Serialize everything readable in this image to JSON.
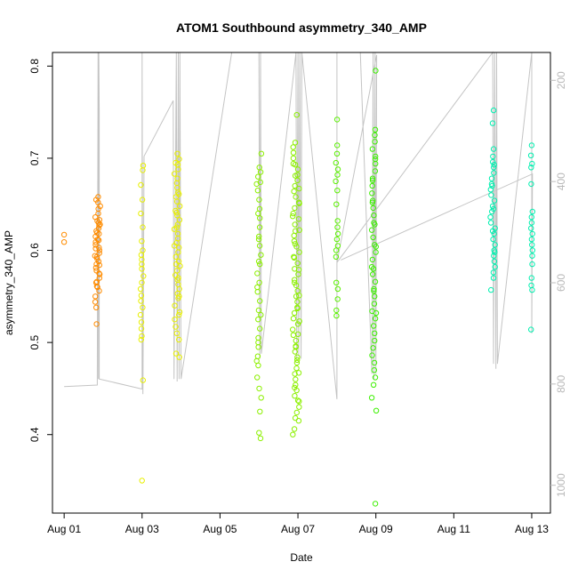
{
  "chart_data": {
    "type": "scatter",
    "title": "ATOM1 Southbound asymmetry_340_AMP",
    "xlabel": "Date",
    "ylabel": "asymmetry_340_AMP",
    "xlim_days": [
      -0.3,
      12.48
    ],
    "ylim": [
      0.3148,
      0.8148
    ],
    "xticks": [
      {
        "day": 0,
        "label": "Aug 01"
      },
      {
        "day": 2,
        "label": "Aug 03"
      },
      {
        "day": 4,
        "label": "Aug 05"
      },
      {
        "day": 6,
        "label": "Aug 07"
      },
      {
        "day": 8,
        "label": "Aug 09"
      },
      {
        "day": 10,
        "label": "Aug 11"
      },
      {
        "day": 12,
        "label": "Aug 13"
      }
    ],
    "yticks": [
      0.4,
      0.5,
      0.6,
      0.7,
      0.8
    ],
    "secondary_axis": {
      "description": "depth (inverted, right side, grey)",
      "ticks": [
        200,
        400,
        600,
        800,
        1000
      ],
      "range": [
        1055,
        145
      ]
    },
    "grid": false,
    "point_clusters": [
      {
        "day": 0.0,
        "spread": 0.0,
        "color": "#FF8C00",
        "values": [
          0.617,
          0.609
        ]
      },
      {
        "day": 0.85,
        "spread": 0.15,
        "color": "#FF8C00",
        "values": [
          0.658,
          0.655,
          0.652,
          0.648,
          0.645,
          0.64,
          0.636,
          0.633,
          0.63,
          0.627,
          0.624,
          0.621,
          0.618,
          0.615,
          0.612,
          0.609,
          0.606,
          0.603,
          0.6,
          0.597,
          0.594,
          0.591,
          0.588,
          0.585,
          0.581,
          0.578,
          0.574,
          0.57,
          0.566,
          0.561,
          0.556,
          0.55,
          0.544,
          0.538,
          0.52,
          0.632,
          0.628,
          0.619,
          0.611,
          0.602,
          0.593,
          0.584,
          0.575,
          0.565,
          0.56
        ]
      },
      {
        "day": 2.0,
        "spread": 0.08,
        "color": "#E8F000",
        "values": [
          0.692,
          0.687,
          0.671,
          0.655,
          0.64,
          0.625,
          0.61,
          0.6,
          0.595,
          0.59,
          0.585,
          0.58,
          0.572,
          0.565,
          0.558,
          0.551,
          0.545,
          0.538,
          0.53,
          0.522,
          0.515,
          0.507,
          0.503,
          0.459,
          0.35
        ]
      },
      {
        "day": 2.9,
        "spread": 0.15,
        "color": "#E8F000",
        "values": [
          0.705,
          0.699,
          0.693,
          0.688,
          0.683,
          0.678,
          0.673,
          0.668,
          0.663,
          0.658,
          0.653,
          0.648,
          0.643,
          0.638,
          0.633,
          0.628,
          0.623,
          0.618,
          0.613,
          0.608,
          0.603,
          0.598,
          0.593,
          0.588,
          0.583,
          0.578,
          0.573,
          0.568,
          0.563,
          0.558,
          0.553,
          0.548,
          0.54,
          0.533,
          0.525,
          0.517,
          0.51,
          0.503,
          0.488,
          0.484,
          0.695,
          0.661,
          0.641,
          0.625,
          0.605,
          0.585,
          0.57,
          0.55,
          0.53
        ]
      },
      {
        "day": 5.0,
        "spread": 0.12,
        "color": "#8CF000",
        "values": [
          0.705,
          0.69,
          0.685,
          0.68,
          0.672,
          0.665,
          0.655,
          0.645,
          0.635,
          0.625,
          0.615,
          0.605,
          0.595,
          0.585,
          0.575,
          0.565,
          0.555,
          0.545,
          0.535,
          0.525,
          0.515,
          0.505,
          0.495,
          0.485,
          0.475,
          0.462,
          0.45,
          0.44,
          0.425,
          0.402,
          0.396,
          0.674,
          0.64,
          0.612,
          0.588,
          0.56,
          0.53,
          0.5,
          0.48
        ]
      },
      {
        "day": 5.95,
        "spread": 0.18,
        "color": "#8CF000",
        "values": [
          0.747,
          0.717,
          0.712,
          0.706,
          0.7,
          0.694,
          0.688,
          0.682,
          0.676,
          0.67,
          0.664,
          0.658,
          0.652,
          0.646,
          0.64,
          0.634,
          0.628,
          0.622,
          0.616,
          0.61,
          0.604,
          0.598,
          0.592,
          0.586,
          0.58,
          0.574,
          0.568,
          0.562,
          0.556,
          0.55,
          0.544,
          0.538,
          0.532,
          0.526,
          0.52,
          0.514,
          0.508,
          0.502,
          0.496,
          0.49,
          0.484,
          0.478,
          0.472,
          0.466,
          0.46,
          0.454,
          0.448,
          0.442,
          0.436,
          0.43,
          0.424,
          0.418,
          0.415,
          0.406,
          0.4,
          0.693,
          0.681,
          0.667,
          0.651,
          0.637,
          0.621,
          0.607,
          0.593,
          0.579,
          0.565,
          0.551,
          0.537,
          0.523,
          0.509,
          0.495,
          0.481,
          0.467,
          0.451,
          0.437
        ]
      },
      {
        "day": 7.0,
        "spread": 0.06,
        "color": "#5AF000",
        "values": [
          0.742,
          0.714,
          0.705,
          0.695,
          0.688,
          0.682,
          0.675,
          0.665,
          0.65,
          0.632,
          0.625,
          0.618,
          0.612,
          0.605,
          0.6,
          0.593,
          0.565,
          0.558,
          0.547,
          0.535,
          0.529
        ]
      },
      {
        "day": 7.95,
        "spread": 0.12,
        "color": "#3CF000",
        "values": [
          0.795,
          0.731,
          0.725,
          0.718,
          0.71,
          0.702,
          0.694,
          0.686,
          0.678,
          0.67,
          0.662,
          0.654,
          0.646,
          0.638,
          0.63,
          0.622,
          0.614,
          0.606,
          0.598,
          0.59,
          0.582,
          0.574,
          0.566,
          0.558,
          0.55,
          0.542,
          0.534,
          0.526,
          0.518,
          0.51,
          0.502,
          0.494,
          0.486,
          0.478,
          0.47,
          0.462,
          0.454,
          0.44,
          0.426,
          0.325,
          0.699,
          0.676,
          0.652,
          0.628,
          0.604,
          0.58,
          0.556,
          0.532
        ]
      },
      {
        "day": 11.0,
        "spread": 0.12,
        "color": "#00F0B0",
        "values": [
          0.752,
          0.738,
          0.71,
          0.702,
          0.696,
          0.69,
          0.684,
          0.678,
          0.672,
          0.666,
          0.66,
          0.654,
          0.648,
          0.642,
          0.636,
          0.63,
          0.624,
          0.618,
          0.612,
          0.606,
          0.6,
          0.594,
          0.588,
          0.582,
          0.576,
          0.57,
          0.557,
          0.693,
          0.67,
          0.645,
          0.621,
          0.598
        ]
      },
      {
        "day": 12.0,
        "spread": 0.04,
        "color": "#00F0B0",
        "values": [
          0.714,
          0.703,
          0.694,
          0.69,
          0.672,
          0.642,
          0.636,
          0.63,
          0.624,
          0.618,
          0.612,
          0.606,
          0.6,
          0.594,
          0.585,
          0.57,
          0.562,
          0.557,
          0.514
        ]
      }
    ],
    "grey_depth_trace": [
      [
        0.0,
        805
      ],
      [
        0.85,
        802
      ],
      [
        0.85,
        785
      ],
      [
        0.87,
        160
      ],
      [
        0.87,
        130
      ],
      [
        0.88,
        790
      ],
      [
        0.89,
        145
      ],
      [
        0.9,
        260
      ],
      [
        0.9,
        790
      ],
      [
        2.0,
        810
      ],
      [
        2.0,
        130
      ],
      [
        2.02,
        820
      ],
      [
        2.05,
        350
      ],
      [
        2.8,
        240
      ],
      [
        2.82,
        790
      ],
      [
        2.88,
        130
      ],
      [
        2.9,
        795
      ],
      [
        2.93,
        130
      ],
      [
        2.95,
        790
      ],
      [
        2.97,
        130
      ],
      [
        3.0,
        790
      ],
      [
        4.3,
        130
      ],
      [
        5.0,
        140
      ],
      [
        5.02,
        750
      ],
      [
        5.04,
        130
      ],
      [
        5.06,
        740
      ],
      [
        5.95,
        130
      ],
      [
        5.97,
        750
      ],
      [
        6.0,
        130
      ],
      [
        6.02,
        745
      ],
      [
        6.05,
        130
      ],
      [
        6.08,
        750
      ],
      [
        6.1,
        130
      ],
      [
        7.0,
        830
      ],
      [
        7.0,
        135
      ],
      [
        7.6,
        140
      ],
      [
        7.9,
        780
      ],
      [
        7.93,
        130
      ],
      [
        7.95,
        790
      ],
      [
        7.98,
        130
      ],
      [
        8.0,
        780
      ],
      [
        8.02,
        150
      ],
      [
        7.0,
        560
      ],
      [
        11.0,
        140
      ],
      [
        11.02,
        760
      ],
      [
        11.05,
        130
      ],
      [
        11.08,
        770
      ],
      [
        11.1,
        140
      ],
      [
        11.12,
        760
      ],
      [
        12.0,
        130
      ],
      [
        12.0,
        700
      ],
      [
        12.02,
        385
      ],
      [
        7.1,
        555
      ]
    ]
  }
}
